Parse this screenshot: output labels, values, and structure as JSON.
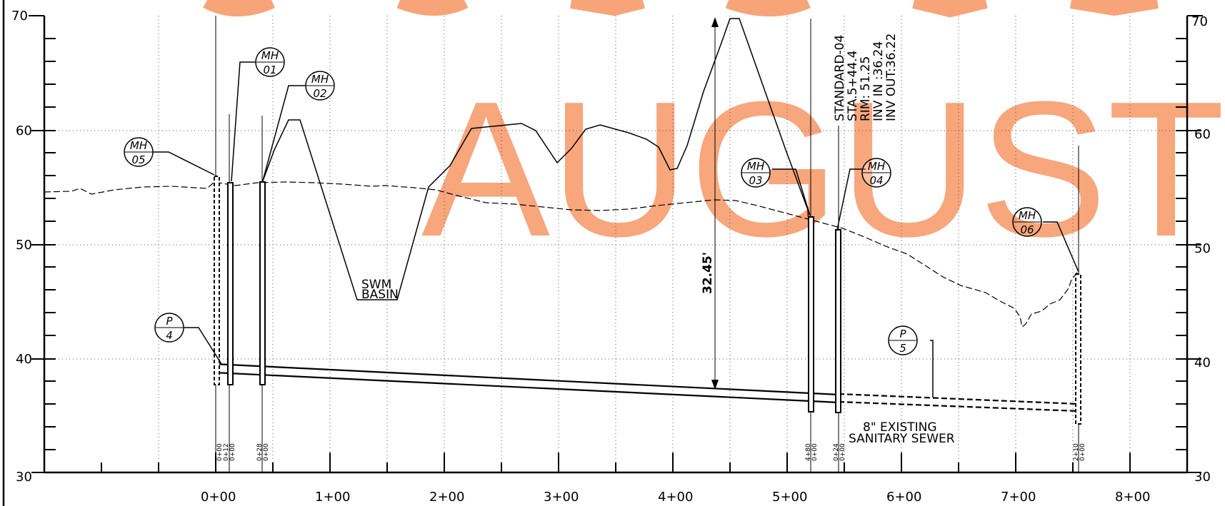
{
  "y_axis": {
    "min": 30,
    "max": 70,
    "labels": [
      "70",
      "60",
      "50",
      "40",
      "30"
    ]
  },
  "x_axis": {
    "labels": [
      "0+00",
      "1+00",
      "2+00",
      "3+00",
      "4+00",
      "5+00",
      "6+00",
      "7+00",
      "8+00"
    ]
  },
  "watermark": {
    "text": "AUGUST",
    "color": "#f79a6a"
  },
  "manholes": [
    {
      "id": "mh-05",
      "top": "MH",
      "bottom": "05"
    },
    {
      "id": "mh-01",
      "top": "MH",
      "bottom": "01"
    },
    {
      "id": "mh-02",
      "top": "MH",
      "bottom": "02"
    },
    {
      "id": "mh-03",
      "top": "MH",
      "bottom": "03"
    },
    {
      "id": "mh-04",
      "top": "MH",
      "bottom": "04"
    },
    {
      "id": "mh-06",
      "top": "MH",
      "bottom": "06"
    }
  ],
  "pipes": [
    {
      "id": "p-4",
      "top": "P",
      "bottom": "4"
    },
    {
      "id": "p-5",
      "top": "P",
      "bottom": "5"
    }
  ],
  "structure_note": [
    "STANDARD-04",
    "STA.5+44.4",
    "RIM: 51.25",
    "INV IN :36.24",
    "INV OUT:36.22"
  ],
  "swm_basin": [
    "SWM",
    "BASIN"
  ],
  "dimension": "32.45'",
  "existing_sewer": [
    "8\" EXISTING",
    "SANITARY SEWER"
  ],
  "station_labels": [
    [
      "0+00",
      "0+12",
      "0+00"
    ],
    [
      "0+28",
      "0+00"
    ],
    [
      "4+80",
      "0+00"
    ],
    [
      "0+24",
      "0+00"
    ],
    [
      "2+10",
      "0+00"
    ]
  ]
}
